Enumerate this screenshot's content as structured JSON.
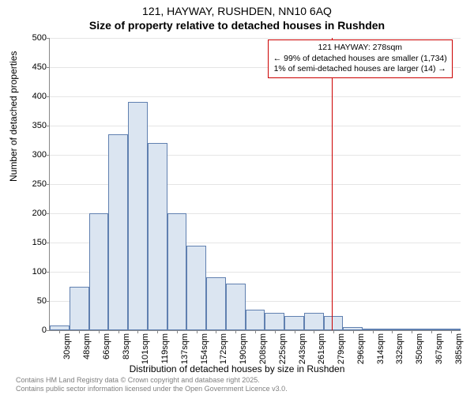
{
  "title_line1": "121, HAYWAY, RUSHDEN, NN10 6AQ",
  "title_line2": "Size of property relative to detached houses in Rushden",
  "ylabel": "Number of detached properties",
  "xlabel": "Distribution of detached houses by size in Rushden",
  "chart": {
    "type": "histogram",
    "ylim": [
      0,
      500
    ],
    "ytick_step": 50,
    "bar_fill": "#dbe5f1",
    "bar_border": "#6080b0",
    "background_color": "#ffffff",
    "grid_color": "#e5e5e5",
    "marker_color": "#cc0000",
    "marker_x_sqm": 278,
    "x_start_sqm": 22,
    "x_bin_width_sqm": 17.77,
    "x_tick_labels": [
      "30sqm",
      "48sqm",
      "66sqm",
      "83sqm",
      "101sqm",
      "119sqm",
      "137sqm",
      "154sqm",
      "172sqm",
      "190sqm",
      "208sqm",
      "225sqm",
      "243sqm",
      "261sqm",
      "279sqm",
      "296sqm",
      "314sqm",
      "332sqm",
      "350sqm",
      "367sqm",
      "385sqm"
    ],
    "values": [
      8,
      75,
      200,
      335,
      390,
      320,
      200,
      145,
      90,
      80,
      35,
      30,
      25,
      30,
      25,
      5,
      3,
      3,
      2,
      2,
      2
    ]
  },
  "annotation": {
    "line1": "121 HAYWAY: 278sqm",
    "line2": "← 99% of detached houses are smaller (1,734)",
    "line3": "1% of semi-detached houses are larger (14) →"
  },
  "footer_line1": "Contains HM Land Registry data © Crown copyright and database right 2025.",
  "footer_line2": "Contains public sector information licensed under the Open Government Licence v3.0."
}
